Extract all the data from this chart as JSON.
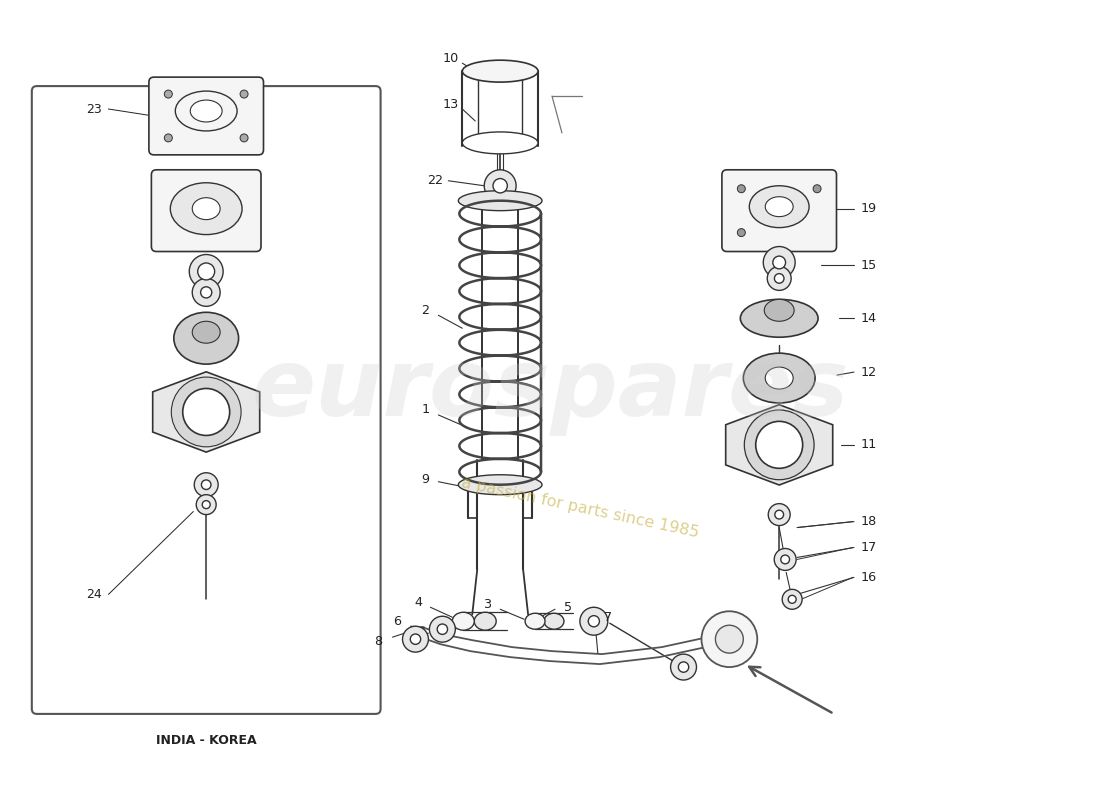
{
  "bg_color": "#ffffff",
  "watermark_text1": "eurospares",
  "watermark_text2": "a passion for parts since 1985",
  "india_korea_label": "INDIA - KOREA",
  "line_color": "#333333",
  "label_color": "#222222",
  "fill_light": "#f5f5f5",
  "fill_mid": "#e8e8e8",
  "fill_dark": "#d0d0d0"
}
